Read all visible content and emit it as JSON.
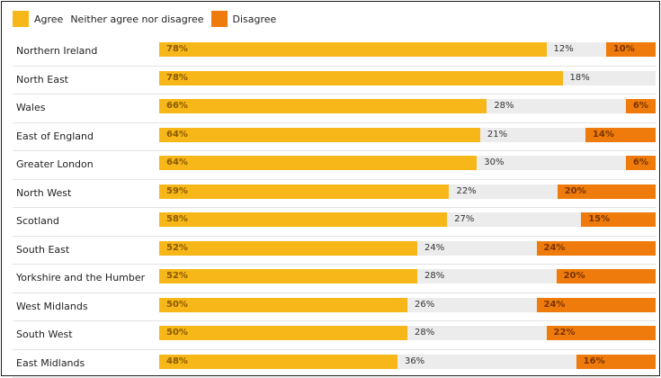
{
  "chart_data": {
    "type": "bar",
    "orientation": "horizontal",
    "stacked": true,
    "legend_position": "top-left",
    "colors": {
      "agree": "#f7b718",
      "neutral": "#ececec",
      "disagree": "#ee7b0b"
    },
    "categories": [
      "Northern Ireland",
      "North East",
      "Wales",
      "East of England",
      "Greater London",
      "North West",
      "Scotland",
      "South East",
      "Yorkshire and the Humber",
      "West Midlands",
      "South West",
      "East Midlands"
    ],
    "series": [
      {
        "name": "Agree",
        "key": "agree",
        "values": [
          78,
          78,
          66,
          64,
          64,
          59,
          58,
          52,
          52,
          50,
          50,
          48
        ]
      },
      {
        "name": "Neither agree nor disagree",
        "key": "neutral",
        "values": [
          12,
          18,
          28,
          21,
          30,
          22,
          27,
          24,
          28,
          26,
          28,
          36
        ]
      },
      {
        "name": "Disagree",
        "key": "disagree",
        "values": [
          10,
          null,
          6,
          14,
          6,
          20,
          15,
          24,
          20,
          24,
          22,
          16
        ]
      }
    ],
    "xlim": [
      0,
      100
    ],
    "value_suffix": "%"
  }
}
